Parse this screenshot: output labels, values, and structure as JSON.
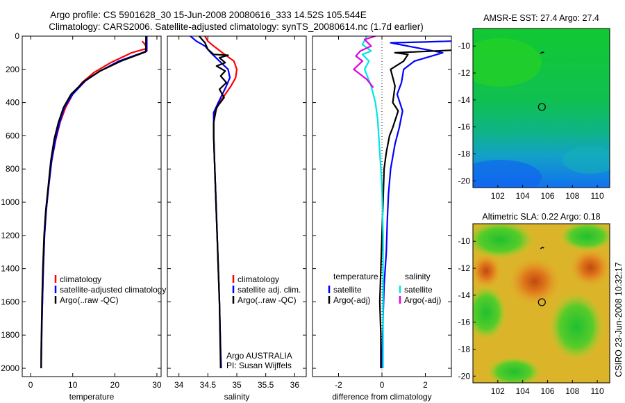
{
  "title_line1": "Argo profile: CS 5901628_30 15-Jun-2008 20080616_333 14.52S 105.544E",
  "title_line2": "Climatology: CARS2006. Satellite-adjusted climatology: synTS_20080614.nc (1.7d earlier)",
  "side_label": "CSIRO 23-Jun-2008 10:32:17",
  "colors": {
    "climatology": "#ff0000",
    "satellite": "#0000ff",
    "argo": "#000000",
    "satellite_salinity": "#00e5e5",
    "argo_salinity": "#e000e0"
  },
  "chart_data": [
    {
      "type": "line",
      "name": "temperature-profile",
      "xlabel": "temperature",
      "ylabel": "",
      "xlim": [
        -2,
        31
      ],
      "ylim": [
        2050,
        0
      ],
      "xticks": [
        "0",
        "10",
        "20",
        "30"
      ],
      "xtick_values": [
        0,
        10,
        20,
        30
      ],
      "yticks": [
        "0",
        "200",
        "400",
        "600",
        "800",
        "1000",
        "1200",
        "1400",
        "1600",
        "1800",
        "2000"
      ],
      "ytick_values": [
        0,
        200,
        400,
        600,
        800,
        1000,
        1200,
        1400,
        1600,
        1800,
        2000
      ],
      "legend": [
        "climatology",
        "satellite-adjusted climatology",
        "Argo(..raw -QC)"
      ],
      "series": [
        {
          "name": "climatology",
          "color_key": "climatology",
          "x": [
            26.5,
            27.2,
            27.5,
            24.0,
            19.0,
            15.0,
            12.2,
            10.0,
            8.3,
            7.0,
            6.0,
            5.0,
            4.3,
            3.7,
            3.3,
            3.0,
            2.8,
            2.65,
            2.55,
            2.5
          ],
          "y": [
            30,
            50,
            75,
            100,
            160,
            220,
            280,
            350,
            430,
            520,
            620,
            750,
            900,
            1050,
            1200,
            1400,
            1600,
            1750,
            1900,
            2000
          ]
        },
        {
          "name": "satellite-adjusted climatology",
          "color_key": "satellite",
          "x": [
            27.6,
            27.6,
            27.6,
            27.6,
            21.0,
            16.5,
            13.0,
            10.0,
            8.0,
            6.9,
            5.9,
            5.0,
            4.3,
            3.7,
            3.3,
            3.0,
            2.8,
            2.65,
            2.55,
            2.5
          ],
          "y": [
            0,
            50,
            75,
            90,
            150,
            210,
            270,
            350,
            430,
            520,
            620,
            750,
            900,
            1050,
            1200,
            1400,
            1600,
            1750,
            1900,
            2000
          ]
        },
        {
          "name": "Argo(..raw -QC)",
          "color_key": "argo",
          "x": [
            27.4,
            27.4,
            27.4,
            27.3,
            21.5,
            16.5,
            12.8,
            9.6,
            7.8,
            6.6,
            5.6,
            4.8,
            4.2,
            3.6,
            3.2,
            2.9,
            2.7,
            2.6,
            2.5,
            2.5
          ],
          "y": [
            0,
            50,
            75,
            95,
            150,
            210,
            270,
            350,
            430,
            520,
            620,
            750,
            900,
            1050,
            1200,
            1400,
            1600,
            1750,
            1900,
            2000
          ]
        }
      ]
    },
    {
      "type": "line",
      "name": "salinity-profile",
      "xlabel": "salinity",
      "ylabel": "",
      "xlim": [
        33.8,
        36.2
      ],
      "ylim": [
        2050,
        0
      ],
      "xticks": [
        "34",
        "34.5",
        "35",
        "35.5",
        "36"
      ],
      "xtick_values": [
        34,
        34.5,
        35,
        35.5,
        36
      ],
      "legend": [
        "climatology",
        "satellite adj. clim.",
        "Argo(..raw -QC)"
      ],
      "annotation": [
        "Argo AUSTRALIA",
        "PI: Susan Wijffels"
      ],
      "series": [
        {
          "name": "climatology",
          "color_key": "climatology",
          "x": [
            34.45,
            34.5,
            34.6,
            34.75,
            34.95,
            35.0,
            34.98,
            34.9,
            34.8,
            34.7,
            34.62,
            34.6,
            34.6,
            34.62,
            34.66,
            34.7,
            34.72,
            34.73
          ],
          "y": [
            0,
            30,
            60,
            100,
            150,
            200,
            250,
            300,
            350,
            400,
            460,
            520,
            600,
            800,
            1200,
            1600,
            1900,
            2000
          ]
        },
        {
          "name": "satellite adj. clim.",
          "color_key": "satellite",
          "x": [
            34.2,
            34.3,
            34.45,
            34.55,
            34.7,
            34.85,
            34.88,
            34.82,
            34.75,
            34.68,
            34.6,
            34.6,
            34.6,
            34.62,
            34.66,
            34.7,
            34.72,
            34.73
          ],
          "y": [
            0,
            30,
            60,
            100,
            150,
            200,
            250,
            300,
            350,
            400,
            460,
            520,
            600,
            800,
            1200,
            1600,
            1900,
            2000
          ]
        },
        {
          "name": "Argo(..raw -QC)",
          "color_key": "argo",
          "x": [
            34.35,
            34.45,
            34.5,
            34.6,
            34.85,
            34.7,
            34.8,
            34.65,
            34.8,
            34.72,
            34.82,
            34.7,
            34.78,
            34.65,
            34.6,
            34.6,
            34.62,
            34.66,
            34.7,
            34.72
          ],
          "y": [
            0,
            40,
            80,
            110,
            115,
            130,
            160,
            180,
            210,
            240,
            280,
            320,
            370,
            430,
            520,
            600,
            800,
            1200,
            1600,
            2000
          ]
        }
      ]
    },
    {
      "type": "line",
      "name": "difference-profile",
      "xlabel": "difference from climatology",
      "ylabel": "",
      "xlim": [
        -3.2,
        3.2
      ],
      "ylim": [
        2050,
        0
      ],
      "xticks": [
        "-2",
        "0",
        "2"
      ],
      "xtick_values": [
        -2,
        0,
        2
      ],
      "legend_headers": [
        "temperature",
        "salinity"
      ],
      "legend": [
        "satellite",
        "Argo(-adj)",
        "satellite",
        "Argo(-adj)"
      ],
      "series": [
        {
          "name": "temperature satellite",
          "color_key": "satellite",
          "x": [
            3.2,
            2.0,
            0.4,
            2.8,
            1.5,
            1.0,
            0.9,
            0.7,
            0.95,
            0.8,
            0.6,
            0.4,
            0.3,
            0.25,
            0.2,
            0.1,
            0.05,
            0.02,
            0.0
          ],
          "y": [
            30,
            35,
            40,
            100,
            150,
            200,
            280,
            350,
            450,
            550,
            650,
            800,
            950,
            1100,
            1300,
            1500,
            1700,
            1900,
            2000
          ]
        },
        {
          "name": "temperature Argo(-adj)",
          "color_key": "argo",
          "x": [
            3.2,
            1.5,
            0.6,
            1.2,
            1.0,
            0.4,
            0.6,
            0.5,
            0.75,
            0.5,
            0.35,
            0.2,
            0.1,
            0.05,
            0.0,
            -0.05,
            -0.1,
            -0.05,
            -0.05
          ],
          "y": [
            85,
            95,
            100,
            110,
            150,
            200,
            300,
            400,
            450,
            550,
            600,
            700,
            800,
            1000,
            1200,
            1400,
            1600,
            1800,
            2000
          ]
        },
        {
          "name": "salinity satellite",
          "color_key": "satellite_salinity",
          "x": [
            -0.7,
            -0.9,
            -0.5,
            -0.9,
            -0.6,
            -0.8,
            -0.5,
            -0.3,
            -0.2,
            -0.1,
            0.0,
            0.05,
            0.05,
            0.05
          ],
          "y": [
            0,
            50,
            90,
            110,
            150,
            200,
            300,
            400,
            500,
            700,
            900,
            1200,
            1600,
            2000
          ]
        },
        {
          "name": "salinity Argo(-adj)",
          "color_key": "argo_salinity",
          "x": [
            -0.3,
            -0.8,
            -0.5,
            -1.0,
            -1.2,
            -0.9,
            -1.3,
            -0.7,
            -0.4
          ],
          "y": [
            0,
            20,
            60,
            90,
            120,
            150,
            200,
            260,
            310
          ]
        }
      ]
    }
  ],
  "maps": [
    {
      "title": "AMSR-E SST: 27.4 Argo: 27.4",
      "xlim": [
        100,
        111
      ],
      "ylim": [
        -20.5,
        -8.7
      ],
      "xticks": [
        "102",
        "104",
        "106",
        "108",
        "110"
      ],
      "xtick_values": [
        102,
        104,
        106,
        108,
        110
      ],
      "yticks": [
        "-10",
        "-12",
        "-14",
        "-16",
        "-18",
        "-20"
      ],
      "ytick_values": [
        -10,
        -12,
        -14,
        -16,
        -18,
        -20
      ],
      "argo_position": [
        105.544,
        -14.52
      ],
      "track_position": [
        105.6,
        -10.5
      ]
    },
    {
      "title": "Altimetric SLA: 0.22 Argo: 0.18",
      "xlim": [
        100,
        111
      ],
      "ylim": [
        -20.5,
        -8.7
      ],
      "xticks": [
        "102",
        "104",
        "106",
        "108",
        "110"
      ],
      "xtick_values": [
        102,
        104,
        106,
        108,
        110
      ],
      "yticks": [
        "-10",
        "-12",
        "-14",
        "-16",
        "-18",
        "-20"
      ],
      "ytick_values": [
        -10,
        -12,
        -14,
        -16,
        -18,
        -20
      ],
      "argo_position": [
        105.544,
        -14.52
      ],
      "track_position": [
        105.6,
        -10.5
      ]
    }
  ]
}
